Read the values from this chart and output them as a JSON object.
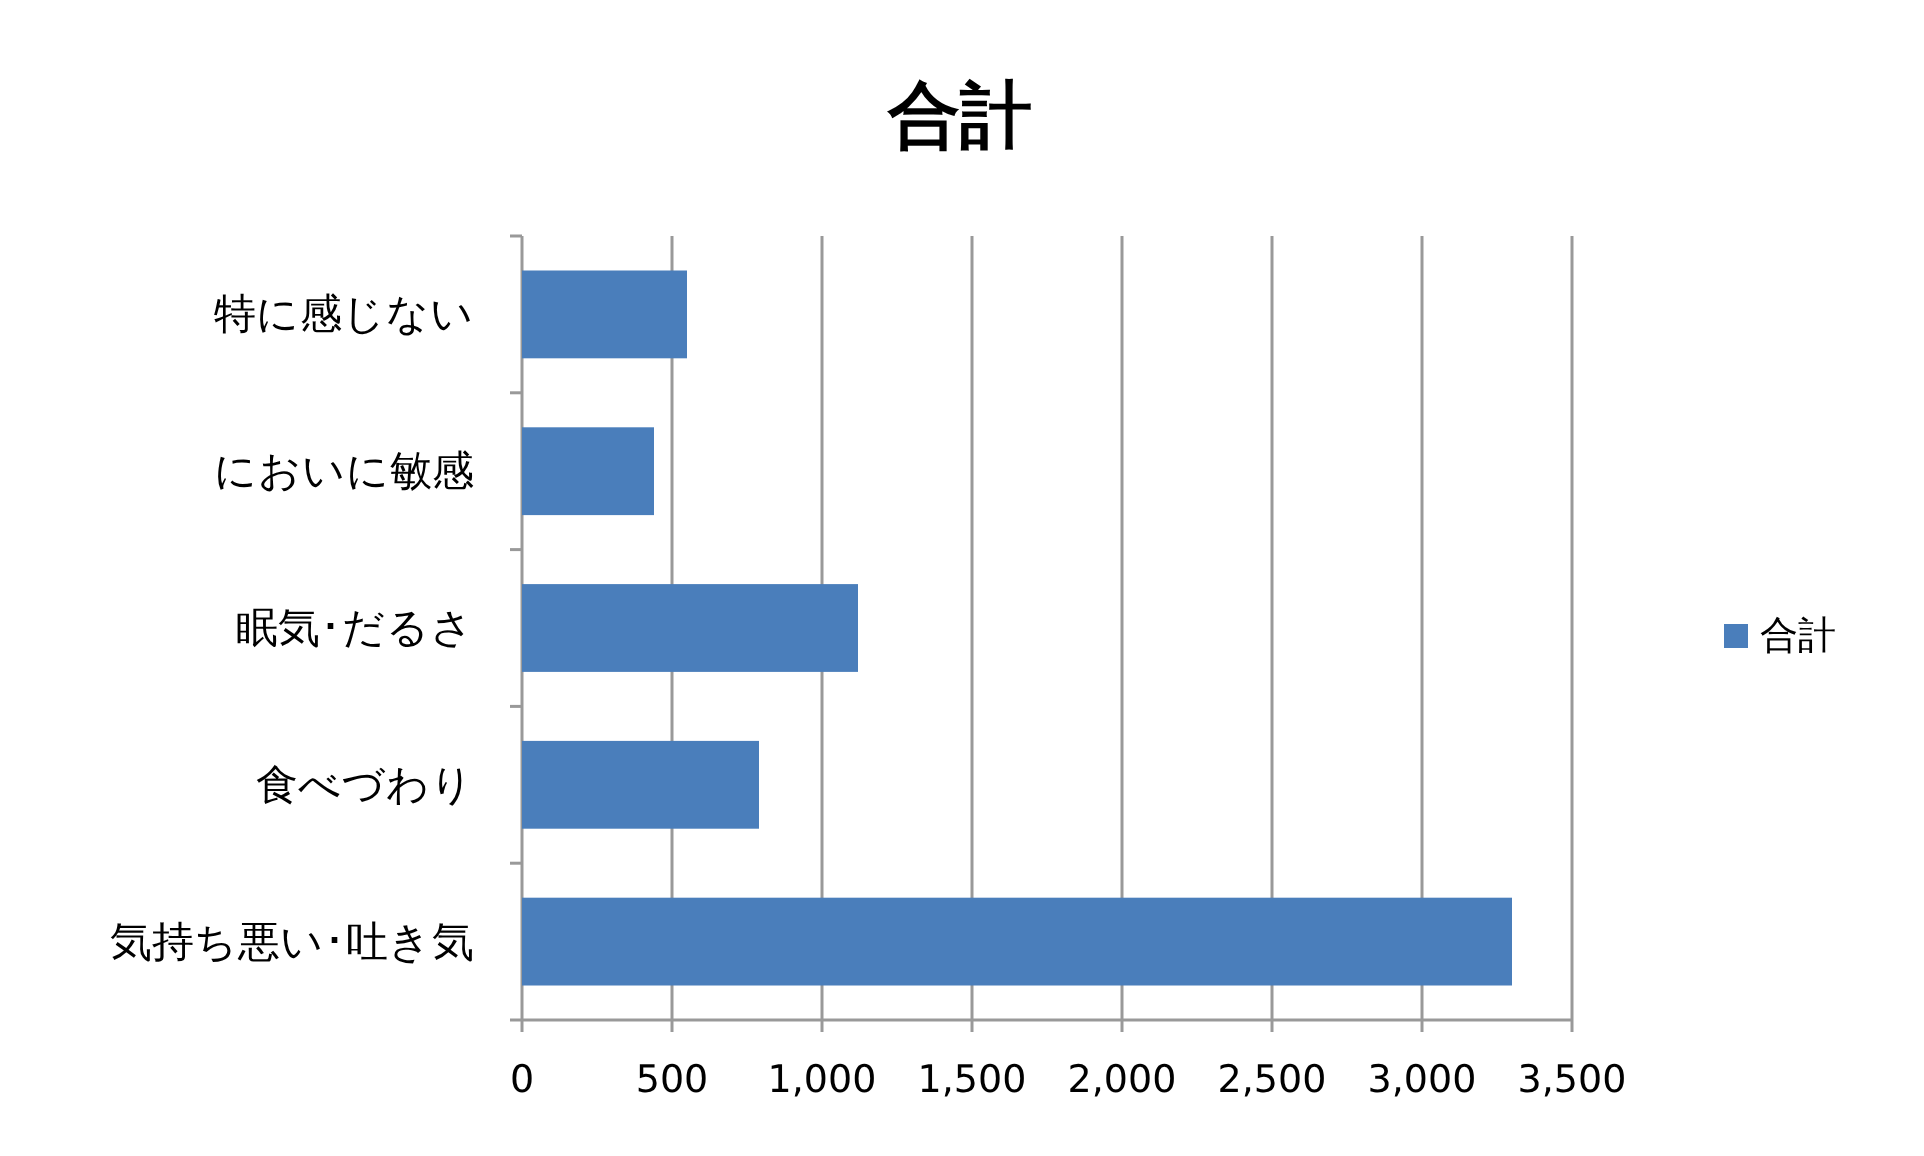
{
  "chart_data": {
    "type": "bar",
    "title": "合計",
    "orientation": "horizontal",
    "categories": [
      "特に感じない",
      "においに敏感",
      "眠気･だるさ",
      "食べづわり",
      "気持ち悪い･吐き気"
    ],
    "series": [
      {
        "name": "合計",
        "color": "#4a7ebb",
        "values": [
          550,
          440,
          1120,
          790,
          3300
        ]
      }
    ],
    "xlim": [
      0,
      3500
    ],
    "xticks": [
      {
        "value": 0,
        "label": "0"
      },
      {
        "value": 500,
        "label": "500"
      },
      {
        "value": 1000,
        "label": "1,000"
      },
      {
        "value": 1500,
        "label": "1,500"
      },
      {
        "value": 2000,
        "label": "2,000"
      },
      {
        "value": 2500,
        "label": "2,500"
      },
      {
        "value": 3000,
        "label": "3,000"
      },
      {
        "value": 3500,
        "label": "3,500"
      }
    ],
    "grid": "x",
    "legend": "right"
  }
}
